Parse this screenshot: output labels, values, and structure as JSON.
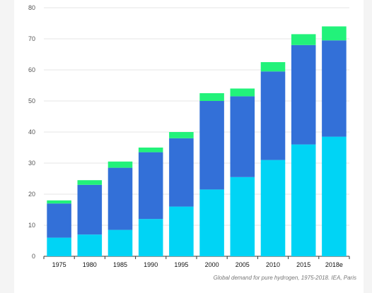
{
  "caption": "Global demand for pure hydrogen, 1975-2018. IEA, Paris",
  "colors": {
    "bottom": "#00d4f5",
    "middle": "#3370d8",
    "top": "#22f27a",
    "grid": "#e6e6e6",
    "axis": "#333333"
  },
  "chart_data": {
    "type": "bar",
    "stacked": true,
    "categories": [
      "1975",
      "1980",
      "1985",
      "1990",
      "1995",
      "2000",
      "2005",
      "2010",
      "2015",
      "2018e"
    ],
    "series": [
      {
        "values": [
          6,
          7,
          8.5,
          12,
          16,
          21.5,
          25.5,
          31,
          36,
          38.5
        ],
        "color": "#00d4f5"
      },
      {
        "values": [
          11,
          16,
          20,
          21.5,
          22,
          28.5,
          26,
          28.5,
          32,
          31
        ],
        "color": "#3370d8"
      },
      {
        "values": [
          1,
          1.5,
          2,
          1.5,
          2,
          2.5,
          2.5,
          3,
          3.5,
          4.5
        ],
        "color": "#22f27a"
      }
    ],
    "yticks": [
      0,
      10,
      20,
      30,
      40,
      50,
      60,
      70,
      80
    ],
    "ylim": [
      0,
      80
    ],
    "grid": true,
    "legend": "none",
    "title": "",
    "xlabel": "",
    "ylabel": ""
  }
}
